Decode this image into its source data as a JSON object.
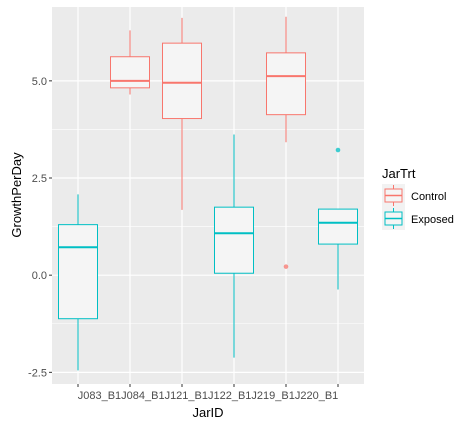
{
  "chart_data": {
    "type": "boxplot",
    "xlabel": "JarID",
    "ylabel": "GrowthPerDay",
    "categories": [
      "J083_B1",
      "J084_B1",
      "J121_B1",
      "J122_B1",
      "J219_B1",
      "J220_B1"
    ],
    "x_tick_text": "J083_B1J084_B1J121_B1J122_B1J219_B1J220_B1",
    "y_ticks": [
      {
        "value": -2.5,
        "label": "-2.5"
      },
      {
        "value": 0,
        "label": "0.0"
      },
      {
        "value": 2.5,
        "label": "2.5"
      },
      {
        "value": 5,
        "label": "5.0"
      }
    ],
    "ylim": [
      -2.8,
      6.9
    ],
    "grid": true,
    "legend": {
      "title": "JarTrt",
      "placement": "right",
      "entries": [
        {
          "name": "Control",
          "color": "#F8766D"
        },
        {
          "name": "Exposed",
          "color": "#00BFC4"
        }
      ]
    },
    "boxes": [
      {
        "category": "J083_B1",
        "group": "Exposed",
        "min": -2.45,
        "q1": -1.12,
        "median": 0.72,
        "q3": 1.3,
        "max": 2.08,
        "outliers": []
      },
      {
        "category": "J084_B1",
        "group": "Control",
        "min": 4.65,
        "q1": 4.82,
        "median": 5.0,
        "q3": 5.62,
        "max": 6.3,
        "outliers": []
      },
      {
        "category": "J121_B1",
        "group": "Control",
        "min": 1.68,
        "q1": 4.03,
        "median": 4.95,
        "q3": 5.97,
        "max": 6.62,
        "outliers": []
      },
      {
        "category": "J122_B1",
        "group": "Exposed",
        "min": -2.12,
        "q1": 0.05,
        "median": 1.08,
        "q3": 1.75,
        "max": 3.62,
        "outliers": []
      },
      {
        "category": "J219_B1",
        "group": "Control",
        "min": 3.42,
        "q1": 4.13,
        "median": 5.12,
        "q3": 5.72,
        "max": 6.65,
        "outliers": [
          0.22
        ]
      },
      {
        "category": "J220_B1",
        "group": "Exposed",
        "min": -0.37,
        "q1": 0.8,
        "median": 1.35,
        "q3": 1.7,
        "max": 1.7,
        "outliers": [
          3.22
        ]
      }
    ],
    "colors": {
      "panel_background": "#EBEBEB",
      "grid_major": "#FFFFFF",
      "box_fill": "#F5F5F5"
    }
  }
}
